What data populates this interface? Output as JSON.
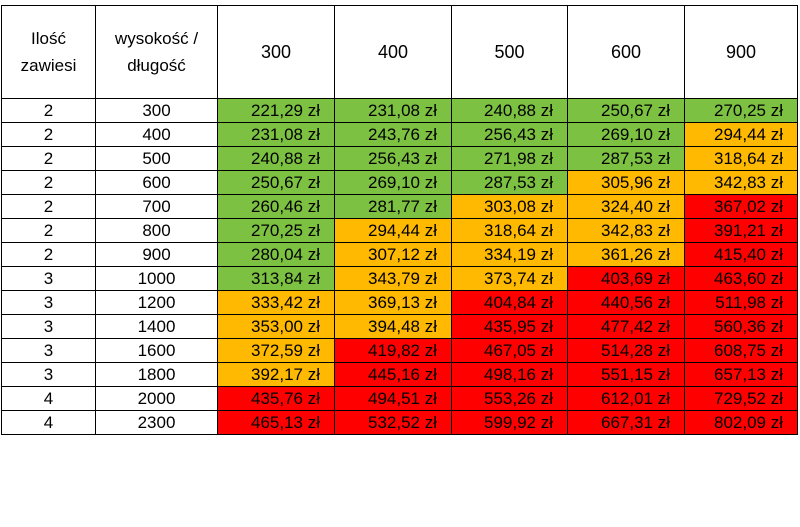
{
  "header": {
    "count_label": "Ilość zawiesi",
    "size_label": "wysokość / długość",
    "widths": [
      "300",
      "400",
      "500",
      "600",
      "900"
    ]
  },
  "colors": {
    "green": "#7cc142",
    "orange": "#ffb900",
    "red": "#ff0000"
  },
  "rows": [
    {
      "count": "2",
      "size": "300",
      "prices": [
        "221,29 zł",
        "231,08 zł",
        "240,88 zł",
        "250,67 zł",
        "270,25 zł"
      ],
      "tiers": [
        "green",
        "green",
        "green",
        "green",
        "green"
      ]
    },
    {
      "count": "2",
      "size": "400",
      "prices": [
        "231,08 zł",
        "243,76 zł",
        "256,43 zł",
        "269,10 zł",
        "294,44 zł"
      ],
      "tiers": [
        "green",
        "green",
        "green",
        "green",
        "orange"
      ]
    },
    {
      "count": "2",
      "size": "500",
      "prices": [
        "240,88 zł",
        "256,43 zł",
        "271,98 zł",
        "287,53 zł",
        "318,64 zł"
      ],
      "tiers": [
        "green",
        "green",
        "green",
        "green",
        "orange"
      ]
    },
    {
      "count": "2",
      "size": "600",
      "prices": [
        "250,67 zł",
        "269,10 zł",
        "287,53 zł",
        "305,96 zł",
        "342,83 zł"
      ],
      "tiers": [
        "green",
        "green",
        "green",
        "orange",
        "orange"
      ]
    },
    {
      "count": "2",
      "size": "700",
      "prices": [
        "260,46 zł",
        "281,77 zł",
        "303,08 zł",
        "324,40 zł",
        "367,02 zł"
      ],
      "tiers": [
        "green",
        "green",
        "orange",
        "orange",
        "red"
      ]
    },
    {
      "count": "2",
      "size": "800",
      "prices": [
        "270,25 zł",
        "294,44 zł",
        "318,64 zł",
        "342,83 zł",
        "391,21 zł"
      ],
      "tiers": [
        "green",
        "orange",
        "orange",
        "orange",
        "red"
      ]
    },
    {
      "count": "2",
      "size": "900",
      "prices": [
        "280,04 zł",
        "307,12 zł",
        "334,19 zł",
        "361,26 zł",
        "415,40 zł"
      ],
      "tiers": [
        "green",
        "orange",
        "orange",
        "orange",
        "red"
      ]
    },
    {
      "count": "3",
      "size": "1000",
      "prices": [
        "313,84 zł",
        "343,79 zł",
        "373,74 zł",
        "403,69 zł",
        "463,60 zł"
      ],
      "tiers": [
        "green",
        "orange",
        "orange",
        "red",
        "red"
      ]
    },
    {
      "count": "3",
      "size": "1200",
      "prices": [
        "333,42 zł",
        "369,13 zł",
        "404,84 zł",
        "440,56 zł",
        "511,98 zł"
      ],
      "tiers": [
        "orange",
        "orange",
        "red",
        "red",
        "red"
      ]
    },
    {
      "count": "3",
      "size": "1400",
      "prices": [
        "353,00 zł",
        "394,48 zł",
        "435,95 zł",
        "477,42 zł",
        "560,36 zł"
      ],
      "tiers": [
        "orange",
        "orange",
        "red",
        "red",
        "red"
      ]
    },
    {
      "count": "3",
      "size": "1600",
      "prices": [
        "372,59 zł",
        "419,82 zł",
        "467,05 zł",
        "514,28 zł",
        "608,75 zł"
      ],
      "tiers": [
        "orange",
        "red",
        "red",
        "red",
        "red"
      ]
    },
    {
      "count": "3",
      "size": "1800",
      "prices": [
        "392,17 zł",
        "445,16 zł",
        "498,16 zł",
        "551,15 zł",
        "657,13 zł"
      ],
      "tiers": [
        "orange",
        "red",
        "red",
        "red",
        "red"
      ]
    },
    {
      "count": "4",
      "size": "2000",
      "prices": [
        "435,76 zł",
        "494,51 zł",
        "553,26 zł",
        "612,01 zł",
        "729,52 zł"
      ],
      "tiers": [
        "red",
        "red",
        "red",
        "red",
        "red"
      ]
    },
    {
      "count": "4",
      "size": "2300",
      "prices": [
        "465,13 zł",
        "532,52 zł",
        "599,92 zł",
        "667,31 zł",
        "802,09 zł"
      ],
      "tiers": [
        "red",
        "red",
        "red",
        "red",
        "red"
      ]
    }
  ]
}
